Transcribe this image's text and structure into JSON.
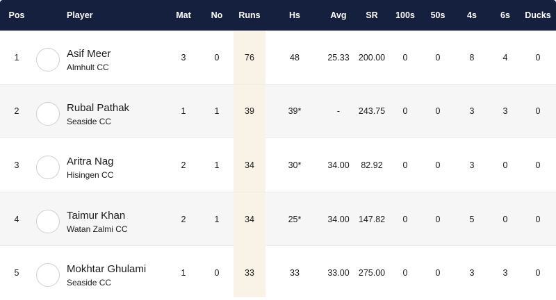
{
  "headers": {
    "pos": "Pos",
    "player": "Player",
    "mat": "Mat",
    "no": "No",
    "runs": "Runs",
    "hs": "Hs",
    "avg": "Avg",
    "sr": "SR",
    "hundreds": "100s",
    "fifties": "50s",
    "fours": "4s",
    "sixes": "6s",
    "ducks": "Ducks"
  },
  "rows": [
    {
      "pos": "1",
      "name": "Asif Meer",
      "team": "Almhult CC",
      "mat": "3",
      "no": "0",
      "runs": "76",
      "hs": "48",
      "avg": "25.33",
      "sr": "200.00",
      "hundreds": "0",
      "fifties": "0",
      "fours": "8",
      "sixes": "4",
      "ducks": "0"
    },
    {
      "pos": "2",
      "name": "Rubal Pathak",
      "team": "Seaside CC",
      "mat": "1",
      "no": "1",
      "runs": "39",
      "hs": "39*",
      "avg": "-",
      "sr": "243.75",
      "hundreds": "0",
      "fifties": "0",
      "fours": "3",
      "sixes": "3",
      "ducks": "0"
    },
    {
      "pos": "3",
      "name": "Aritra Nag",
      "team": "Hisingen CC",
      "mat": "2",
      "no": "1",
      "runs": "34",
      "hs": "30*",
      "avg": "34.00",
      "sr": "82.92",
      "hundreds": "0",
      "fifties": "0",
      "fours": "3",
      "sixes": "0",
      "ducks": "0"
    },
    {
      "pos": "4",
      "name": "Taimur Khan",
      "team": "Watan Zalmi CC",
      "mat": "2",
      "no": "1",
      "runs": "34",
      "hs": "25*",
      "avg": "34.00",
      "sr": "147.82",
      "hundreds": "0",
      "fifties": "0",
      "fours": "5",
      "sixes": "0",
      "ducks": "0"
    },
    {
      "pos": "5",
      "name": "Mokhtar Ghulami",
      "team": "Seaside CC",
      "mat": "1",
      "no": "0",
      "runs": "33",
      "hs": "33",
      "avg": "33.00",
      "sr": "275.00",
      "hundreds": "0",
      "fifties": "0",
      "fours": "3",
      "sixes": "3",
      "ducks": "0"
    }
  ],
  "colors": {
    "header_bg": "#15203e",
    "header_text": "#ffffff",
    "runs_column_highlight": "#f8f3e6",
    "alt_row_bg": "#f6f6f6"
  }
}
